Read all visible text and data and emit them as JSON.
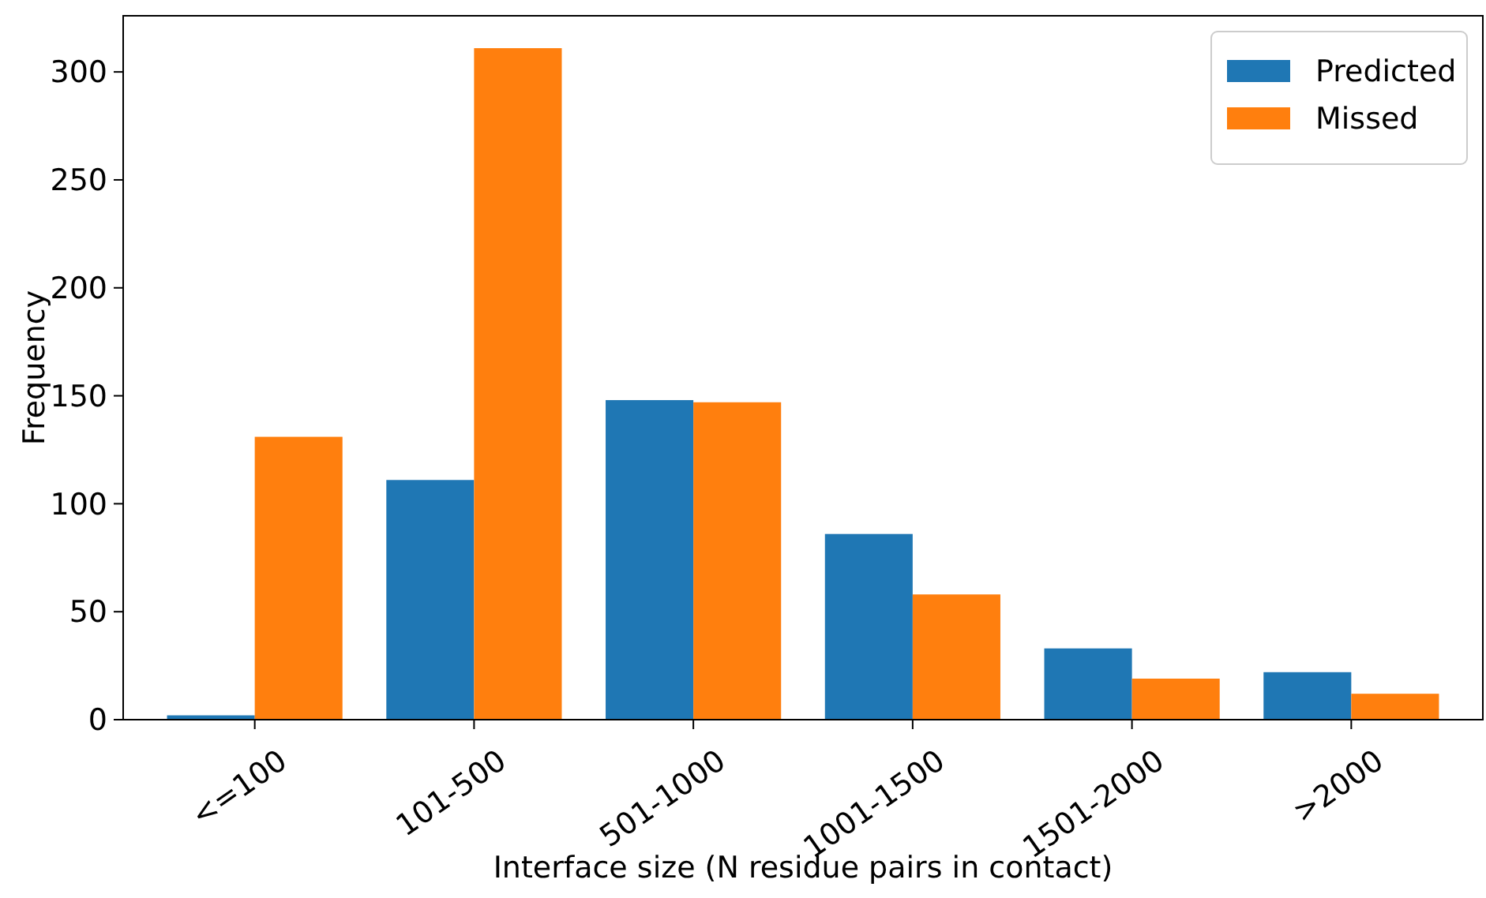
{
  "chart_data": {
    "type": "bar",
    "xlabel": "Interface size (N residue pairs in contact)",
    "ylabel": "Frequency",
    "categories": [
      "<=100",
      "101-500",
      "501-1000",
      "1001-1500",
      "1501-2000",
      ">2000"
    ],
    "series": [
      {
        "name": "Predicted",
        "color": "#1f77b4",
        "values": [
          2,
          111,
          148,
          86,
          33,
          22
        ]
      },
      {
        "name": "Missed",
        "color": "#ff7f0e",
        "values": [
          131,
          311,
          147,
          58,
          19,
          12
        ]
      }
    ],
    "ylim": [
      0,
      326
    ],
    "yticks": [
      0,
      50,
      100,
      150,
      200,
      250,
      300
    ],
    "legend": "top right"
  }
}
